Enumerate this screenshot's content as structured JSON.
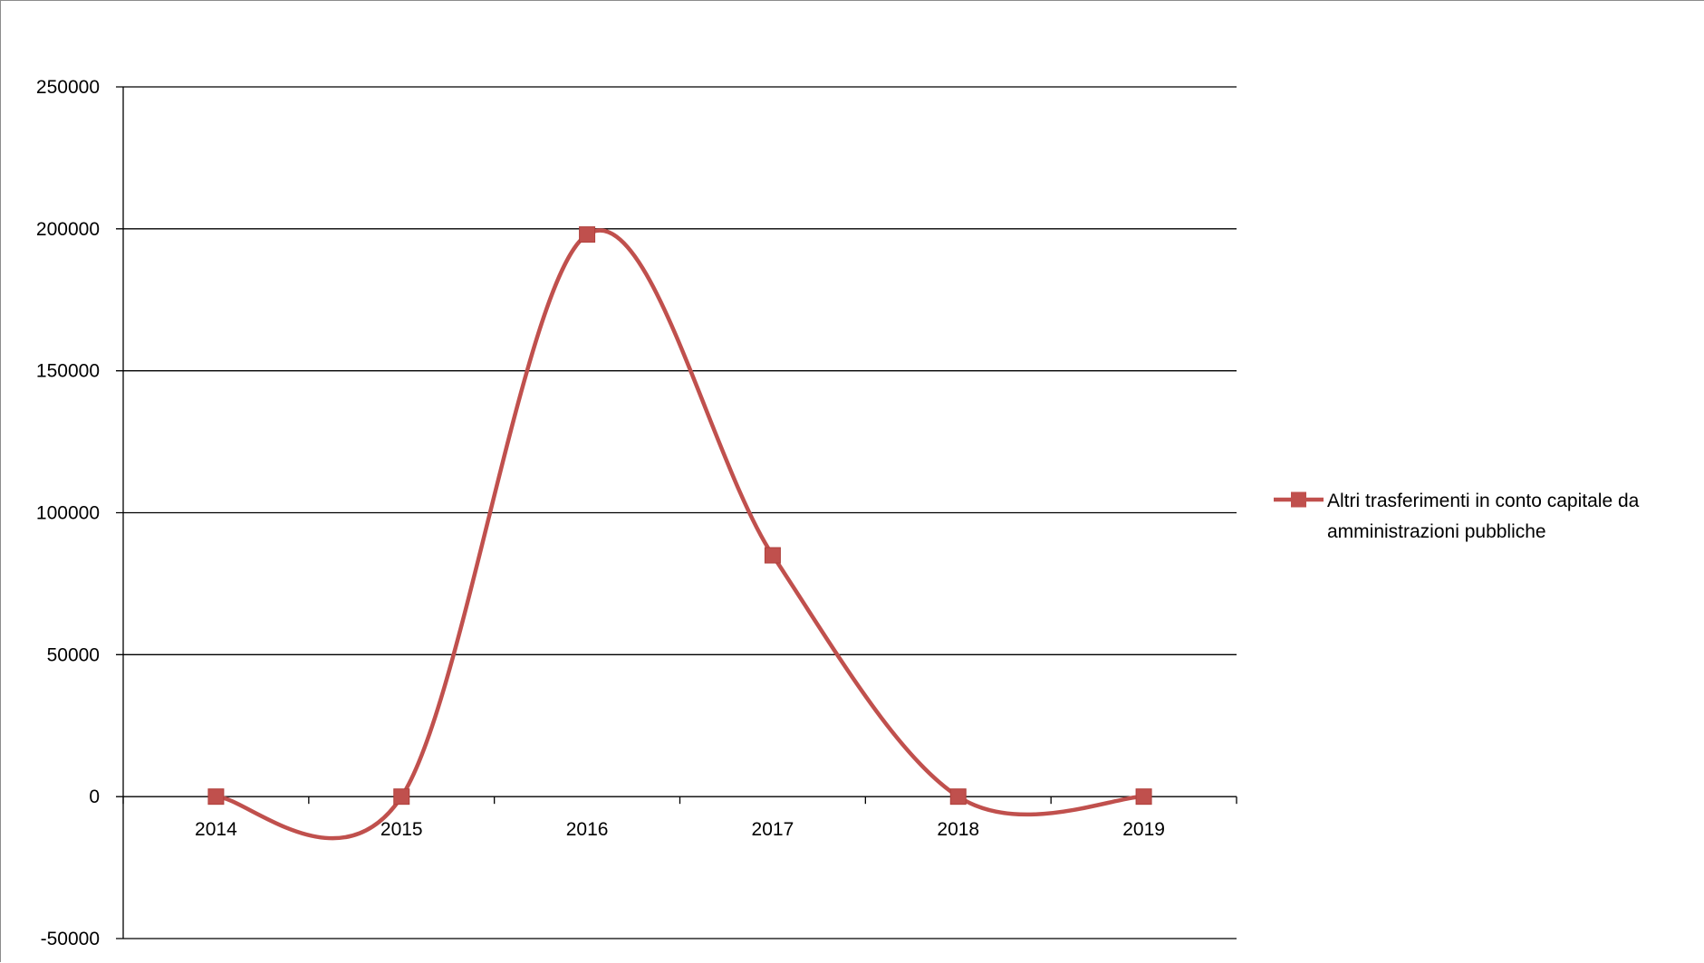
{
  "chart_data": {
    "type": "line",
    "categories": [
      "2014",
      "2015",
      "2016",
      "2017",
      "2018",
      "2019"
    ],
    "series": [
      {
        "name": "Altri trasferimenti in conto capitale da amministrazioni pubbliche",
        "values": [
          0,
          0,
          198000,
          85000,
          0,
          0
        ],
        "color": "#c0504d",
        "marker": "square",
        "smooth": true
      }
    ],
    "yticks": [
      "250000",
      "200000",
      "150000",
      "100000",
      "50000",
      "0",
      "-50000"
    ],
    "ylim": [
      -50000,
      250000
    ],
    "grid": true,
    "legend": {
      "position": "right",
      "lines": [
        "Altri trasferimenti in conto capitale da",
        "amministrazioni pubbliche"
      ]
    }
  }
}
